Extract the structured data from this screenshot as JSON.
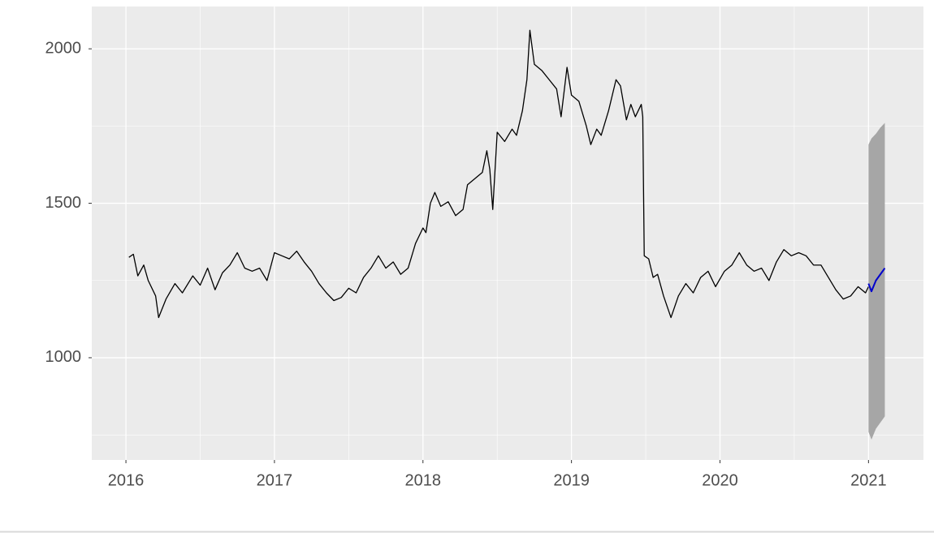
{
  "chart_data": {
    "type": "line",
    "xlim": [
      2015.77,
      2021.37
    ],
    "ylim": [
      669,
      2137
    ],
    "xticks": [
      2016,
      2017,
      2018,
      2019,
      2020,
      2021
    ],
    "yticks": [
      1000,
      1500,
      2000
    ],
    "grid": true,
    "series": [
      {
        "color": "#000000",
        "x": [
          2016.02,
          2016.05,
          2016.08,
          2016.12,
          2016.15,
          2016.2,
          2016.22,
          2016.27,
          2016.33,
          2016.38,
          2016.45,
          2016.5,
          2016.55,
          2016.6,
          2016.65,
          2016.7,
          2016.75,
          2016.8,
          2016.85,
          2016.9,
          2016.95,
          2017.0,
          2017.05,
          2017.1,
          2017.15,
          2017.2,
          2017.25,
          2017.3,
          2017.35,
          2017.4,
          2017.45,
          2017.5,
          2017.55,
          2017.6,
          2017.65,
          2017.7,
          2017.75,
          2017.8,
          2017.85,
          2017.9,
          2017.95,
          2018.0,
          2018.02,
          2018.05,
          2018.08,
          2018.12,
          2018.17,
          2018.22,
          2018.27,
          2018.3,
          2018.35,
          2018.4,
          2018.43,
          2018.45,
          2018.47,
          2018.5,
          2018.55,
          2018.6,
          2018.63,
          2018.67,
          2018.7,
          2018.72,
          2018.75,
          2018.8,
          2018.85,
          2018.9,
          2018.93,
          2018.97,
          2019.0,
          2019.05,
          2019.1,
          2019.13,
          2019.17,
          2019.2,
          2019.25,
          2019.3,
          2019.33,
          2019.37,
          2019.4,
          2019.43,
          2019.47,
          2019.48,
          2019.49,
          2019.52,
          2019.55,
          2019.58,
          2019.62,
          2019.67,
          2019.72,
          2019.77,
          2019.82,
          2019.87,
          2019.92,
          2019.97,
          2020.03,
          2020.08,
          2020.13,
          2020.18,
          2020.23,
          2020.28,
          2020.33,
          2020.38,
          2020.43,
          2020.48,
          2020.53,
          2020.58,
          2020.63,
          2020.68,
          2020.73,
          2020.78,
          2020.83,
          2020.88,
          2020.93,
          2020.98,
          2021.0
        ],
        "values": [
          1325,
          1335,
          1265,
          1300,
          1250,
          1200,
          1130,
          1190,
          1240,
          1210,
          1265,
          1235,
          1290,
          1220,
          1275,
          1300,
          1340,
          1290,
          1280,
          1290,
          1250,
          1340,
          1330,
          1320,
          1345,
          1310,
          1280,
          1240,
          1210,
          1185,
          1195,
          1225,
          1210,
          1260,
          1290,
          1330,
          1290,
          1310,
          1270,
          1290,
          1370,
          1420,
          1405,
          1500,
          1535,
          1490,
          1505,
          1460,
          1480,
          1560,
          1580,
          1600,
          1670,
          1610,
          1480,
          1730,
          1700,
          1740,
          1720,
          1800,
          1900,
          2060,
          1950,
          1930,
          1900,
          1870,
          1780,
          1940,
          1850,
          1830,
          1750,
          1690,
          1740,
          1720,
          1800,
          1900,
          1880,
          1770,
          1820,
          1780,
          1820,
          1780,
          1330,
          1320,
          1260,
          1270,
          1200,
          1130,
          1200,
          1240,
          1210,
          1260,
          1280,
          1230,
          1280,
          1300,
          1340,
          1300,
          1280,
          1290,
          1250,
          1310,
          1350,
          1330,
          1340,
          1330,
          1300,
          1300,
          1260,
          1220,
          1190,
          1200,
          1230,
          1210,
          1230
        ]
      },
      {
        "color": "#0000cc",
        "band_color": "#a6a6a6",
        "x": [
          2021.0,
          2021.02,
          2021.05,
          2021.08,
          2021.11
        ],
        "values": [
          1240,
          1215,
          1250,
          1270,
          1290
        ],
        "lower": [
          760,
          735,
          770,
          790,
          810
        ],
        "upper": [
          1690,
          1710,
          1725,
          1745,
          1760
        ]
      }
    ]
  }
}
